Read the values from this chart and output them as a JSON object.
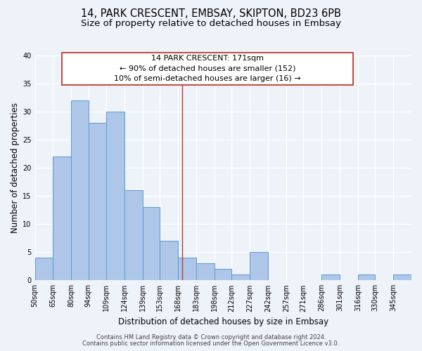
{
  "title": "14, PARK CRESCENT, EMBSAY, SKIPTON, BD23 6PB",
  "subtitle": "Size of property relative to detached houses in Embsay",
  "xlabel": "Distribution of detached houses by size in Embsay",
  "ylabel": "Number of detached properties",
  "footnote1": "Contains HM Land Registry data © Crown copyright and database right 2024.",
  "footnote2": "Contains public sector information licensed under the Open Government Licence v3.0.",
  "bin_labels": [
    "50sqm",
    "65sqm",
    "80sqm",
    "94sqm",
    "109sqm",
    "124sqm",
    "139sqm",
    "153sqm",
    "168sqm",
    "183sqm",
    "198sqm",
    "212sqm",
    "227sqm",
    "242sqm",
    "257sqm",
    "271sqm",
    "286sqm",
    "301sqm",
    "316sqm",
    "330sqm",
    "345sqm"
  ],
  "bin_edges": [
    50,
    65,
    80,
    94,
    109,
    124,
    139,
    153,
    168,
    183,
    198,
    212,
    227,
    242,
    257,
    271,
    286,
    301,
    316,
    330,
    345,
    360
  ],
  "counts": [
    4,
    22,
    32,
    28,
    30,
    16,
    13,
    7,
    4,
    3,
    2,
    1,
    5,
    0,
    0,
    0,
    1,
    0,
    1,
    0,
    1
  ],
  "bar_color": "#aec6e8",
  "bar_edge_color": "#5b9bd5",
  "property_value": 171,
  "vline_color": "#c0392b",
  "annotation_title": "14 PARK CRESCENT: 171sqm",
  "annotation_line1": "← 90% of detached houses are smaller (152)",
  "annotation_line2": "10% of semi-detached houses are larger (16) →",
  "annotation_box_color": "#ffffff",
  "annotation_box_edge_color": "#c0392b",
  "ylim": [
    0,
    40
  ],
  "yticks": [
    0,
    5,
    10,
    15,
    20,
    25,
    30,
    35,
    40
  ],
  "background_color": "#eef2f9",
  "grid_color": "#ffffff",
  "title_fontsize": 10.5,
  "subtitle_fontsize": 9.5,
  "axis_label_fontsize": 8.5,
  "tick_fontsize": 7,
  "annotation_fontsize": 8,
  "footnote_fontsize": 6
}
